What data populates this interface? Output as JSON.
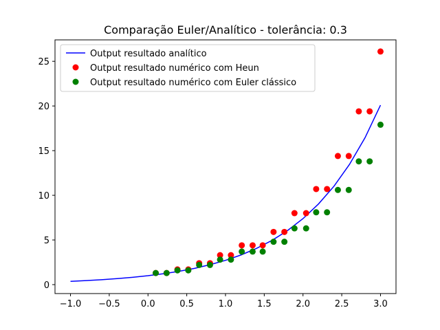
{
  "chart_data": {
    "type": "scatter",
    "title": "Comparação Euler/Analítico - tolerância: 0.3",
    "xlabel": "",
    "ylabel": "",
    "xlim": [
      -1.2,
      3.2
    ],
    "ylim": [
      -1.0,
      27.4
    ],
    "xticks": [
      -1.0,
      -0.5,
      0.0,
      0.5,
      1.0,
      1.5,
      2.0,
      2.5,
      3.0
    ],
    "xtick_labels": [
      "−1.0",
      "−0.5",
      "0.0",
      "0.5",
      "1.0",
      "1.5",
      "2.0",
      "2.5",
      "3.0"
    ],
    "yticks": [
      0,
      5,
      10,
      15,
      20,
      25
    ],
    "ytick_labels": [
      "0",
      "5",
      "10",
      "15",
      "20",
      "25"
    ],
    "grid": false,
    "legend_position": "top-left",
    "series": [
      {
        "name": "Output resultado analítico",
        "kind": "line",
        "color": "#0000ff",
        "x": [
          -1.0,
          -0.8,
          -0.6,
          -0.4,
          -0.2,
          0.0,
          0.2,
          0.4,
          0.6,
          0.8,
          1.0,
          1.2,
          1.4,
          1.6,
          1.8,
          2.0,
          2.2,
          2.4,
          2.6,
          2.8,
          3.0
        ],
        "y": [
          0.37,
          0.45,
          0.55,
          0.67,
          0.82,
          1.0,
          1.22,
          1.49,
          1.82,
          2.23,
          2.72,
          3.32,
          4.06,
          4.95,
          6.05,
          7.39,
          9.03,
          11.02,
          13.46,
          16.44,
          20.09
        ]
      },
      {
        "name": "Output resultado numérico com Heun",
        "kind": "scatter",
        "color": "#ff0000",
        "x": [
          0.1,
          0.24,
          0.38,
          0.52,
          0.66,
          0.8,
          0.93,
          1.07,
          1.21,
          1.35,
          1.48,
          1.62,
          1.76,
          1.89,
          2.04,
          2.17,
          2.31,
          2.45,
          2.59,
          2.72,
          2.86,
          3.0
        ],
        "y": [
          1.3,
          1.3,
          1.7,
          1.7,
          2.4,
          2.4,
          3.3,
          3.3,
          4.4,
          4.4,
          4.4,
          5.9,
          5.9,
          8.0,
          8.0,
          10.7,
          10.7,
          14.4,
          14.4,
          19.4,
          19.4,
          26.1
        ]
      },
      {
        "name": "Output resultado numérico com Euler clássico",
        "kind": "scatter",
        "color": "#008000",
        "x": [
          0.1,
          0.24,
          0.38,
          0.52,
          0.66,
          0.8,
          0.93,
          1.07,
          1.21,
          1.35,
          1.48,
          1.62,
          1.76,
          1.89,
          2.04,
          2.17,
          2.31,
          2.45,
          2.59,
          2.72,
          2.86,
          3.0
        ],
        "y": [
          1.3,
          1.3,
          1.6,
          1.6,
          2.2,
          2.2,
          2.8,
          2.8,
          3.7,
          3.7,
          3.7,
          4.8,
          4.8,
          6.3,
          6.3,
          8.1,
          8.1,
          10.6,
          10.6,
          13.8,
          13.8,
          17.9
        ]
      }
    ]
  }
}
